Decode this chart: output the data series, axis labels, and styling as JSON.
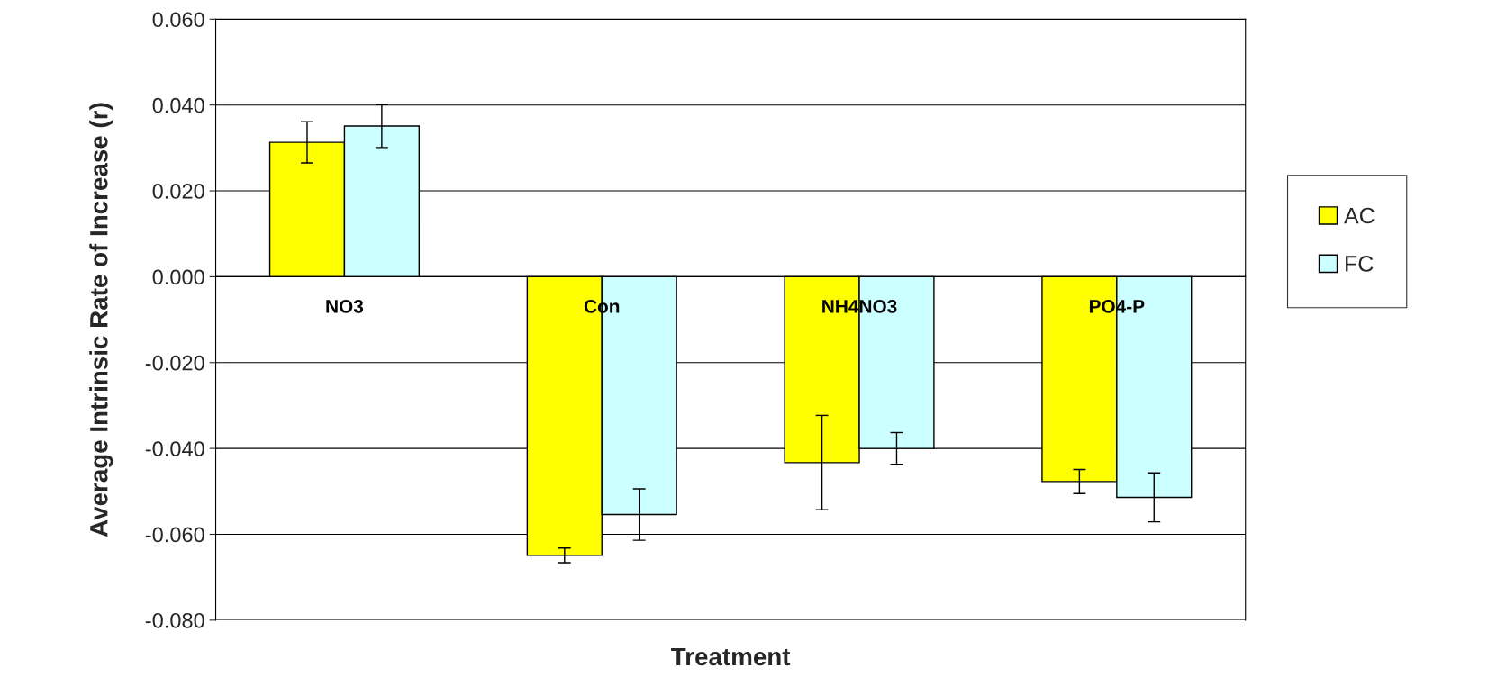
{
  "chart_data": {
    "type": "bar",
    "xlabel": "Treatment",
    "ylabel": "Average Intrinsic Rate of Increase (r)",
    "categories": [
      "NO3",
      "Con",
      "NH4NO3",
      "PO4-P"
    ],
    "series": [
      {
        "name": "AC",
        "color": "#ffff00",
        "values": [
          0.0313,
          -0.0649,
          -0.0433,
          -0.0477
        ],
        "errors": [
          0.0048,
          0.0017,
          0.011,
          0.0028
        ]
      },
      {
        "name": "FC",
        "color": "#ccffff",
        "values": [
          0.0351,
          -0.0554,
          -0.04,
          -0.0514
        ],
        "errors": [
          0.005,
          0.006,
          0.0037,
          0.0057
        ]
      }
    ],
    "ylim": [
      -0.08,
      0.06
    ],
    "yticks": [
      {
        "value": -0.08,
        "label": "-0.080"
      },
      {
        "value": -0.06,
        "label": "-0.060"
      },
      {
        "value": -0.04,
        "label": "-0.040"
      },
      {
        "value": -0.02,
        "label": "-0.020"
      },
      {
        "value": 0,
        "label": "0.000"
      },
      {
        "value": 0.02,
        "label": "0.020"
      },
      {
        "value": 0.04,
        "label": "0.040"
      },
      {
        "value": 0.06,
        "label": "0.060"
      }
    ],
    "grid": "y",
    "legend": "right"
  }
}
